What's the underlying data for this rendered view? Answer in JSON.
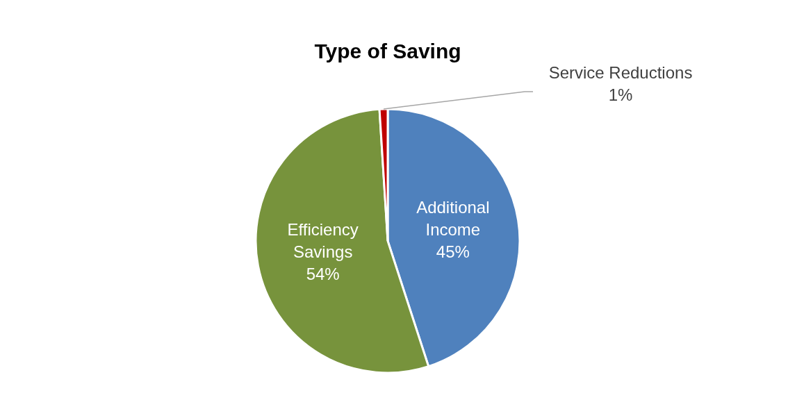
{
  "chart_data": {
    "type": "pie",
    "title": "Type of Saving",
    "categories": [
      "Additional Income",
      "Efficiency Savings",
      "Service Reductions"
    ],
    "values": [
      45,
      54,
      1
    ],
    "colors": [
      "#4f81bd",
      "#77933c",
      "#c00000"
    ],
    "value_labels": [
      "45%",
      "54%",
      "1%"
    ],
    "legend": false
  }
}
